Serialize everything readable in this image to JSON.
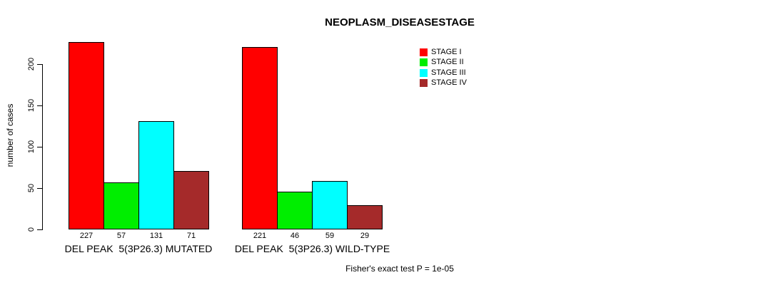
{
  "chart_data": {
    "type": "bar",
    "title": "NEOPLASM_DISEASESTAGE",
    "ylabel": "number of cases",
    "xlabel": "",
    "ylim": [
      0,
      235
    ],
    "yticks": [
      0,
      50,
      100,
      150,
      200
    ],
    "grid": false,
    "legend_position": "top-center-right",
    "categories": [
      "DEL PEAK  5(3P26.3) MUTATED",
      "DEL PEAK  5(3P26.3) WILD-TYPE"
    ],
    "series": [
      {
        "name": "STAGE I",
        "color": "#FF0000",
        "values": [
          227,
          221
        ]
      },
      {
        "name": "STAGE II",
        "color": "#00EE00",
        "values": [
          57,
          46
        ]
      },
      {
        "name": "STAGE III",
        "color": "#00FFFF",
        "values": [
          131,
          59
        ]
      },
      {
        "name": "STAGE IV",
        "color": "#A52A2A",
        "values": [
          71,
          29
        ]
      }
    ],
    "bar_value_labels": [
      [
        227,
        57,
        131,
        71
      ],
      [
        221,
        46,
        59,
        29
      ]
    ],
    "footnote": "Fisher's exact test P = 1e-05",
    "colors": {
      "background": "#FFFFFF",
      "axis": "#000000",
      "text": "#000000"
    }
  }
}
